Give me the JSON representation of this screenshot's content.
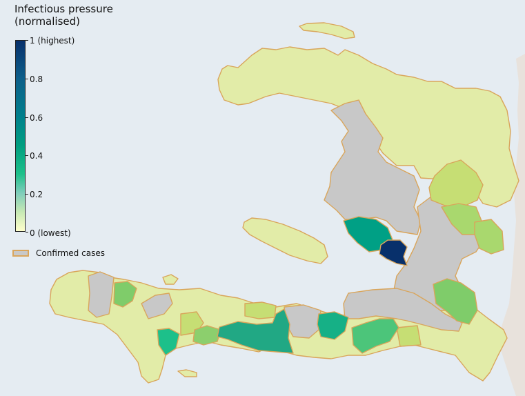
{
  "colorbar": {
    "title_line1": "Infectious pressure",
    "title_line2": "(normalised)",
    "tick_labels": [
      "1 (highest)",
      "0.8",
      "0.6",
      "0.4",
      "0.2",
      "0 (lowest)"
    ]
  },
  "legend": {
    "label": "Confirmed cases"
  },
  "colors": {
    "sea": "#e5ecf2",
    "neighbor_land": "#e8e2dc",
    "border": "#d9a55b",
    "confirmed_fill": "#c8c8c8",
    "low": "#e2eca8",
    "light_green": "#c6de74",
    "mid_green": "#7fcc6a",
    "bright_green": "#1dc08a",
    "teal": "#00a085",
    "dark_blue": "#08306b"
  }
}
